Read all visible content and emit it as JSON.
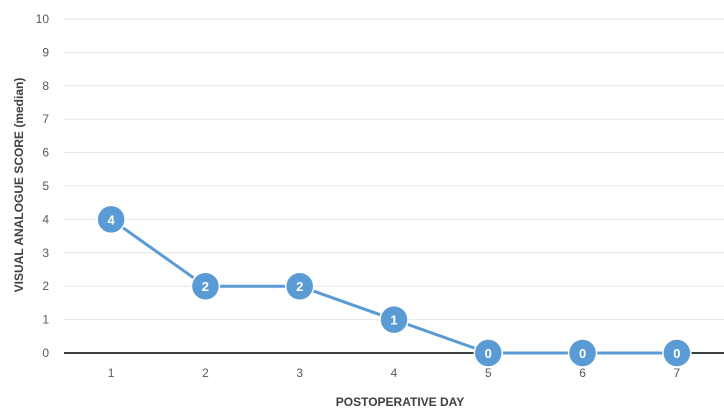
{
  "chart_data": {
    "type": "line",
    "xlabel": "POSTOPERATIVE DAY",
    "ylabel": "VISUAL ANALOGUE SCORE (median)",
    "categories": [
      "1",
      "2",
      "3",
      "4",
      "5",
      "6",
      "7"
    ],
    "series": [
      {
        "values": [
          4,
          2,
          2,
          1,
          0,
          0,
          0
        ],
        "color": "#5B9BD5"
      }
    ],
    "data_labels": [
      "4",
      "2",
      "2",
      "1",
      "0",
      "0",
      "0"
    ],
    "ylim": [
      0,
      10
    ],
    "yticks": [
      "0",
      "1",
      "2",
      "3",
      "4",
      "5",
      "6",
      "7",
      "8",
      "9",
      "10"
    ],
    "grid": true,
    "legend": "none",
    "colors": {
      "line": "#5B9BD5",
      "grid": "#e6e6e6",
      "axis": "#404040"
    }
  }
}
